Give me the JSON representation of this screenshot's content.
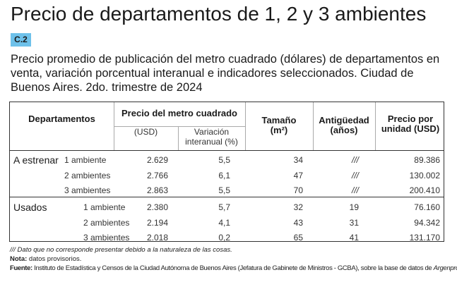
{
  "title": "Precio de departamentos de 1, 2 y 3 ambientes",
  "badge": "C.2",
  "subtitle": "Precio promedio de publicación del metro cuadrado (dólares) de departamentos en venta, variación porcentual interanual e indicadores seleccionados. Ciudad de Buenos Aires. 2do. trimestre de 2024",
  "headers": {
    "departamentos": "Departamentos",
    "precio_m2": "Precio del metro cuadrado",
    "usd": "(USD)",
    "variacion": "Variación interanual (%)",
    "tamano": "Tamaño",
    "tamano_unit": "(m²)",
    "antiguedad": "Antigüedad (años)",
    "precio_unidad": "Precio por unidad (USD)"
  },
  "groups": [
    {
      "name": "A estrenar",
      "rows": [
        {
          "label": "1 ambiente",
          "usd": "2.629",
          "var": "5,5",
          "size": "34",
          "age": "///",
          "price": "89.386"
        },
        {
          "label": "2 ambientes",
          "usd": "2.766",
          "var": "6,1",
          "size": "47",
          "age": "///",
          "price": "130.002"
        },
        {
          "label": "3 ambientes",
          "usd": "2.863",
          "var": "5,5",
          "size": "70",
          "age": "///",
          "price": "200.410"
        }
      ]
    },
    {
      "name": "Usados",
      "rows": [
        {
          "label": "1 ambiente",
          "usd": "2.380",
          "var": "5,7",
          "size": "32",
          "age": "19",
          "price": "76.160"
        },
        {
          "label": "2 ambientes",
          "usd": "2.194",
          "var": "4,1",
          "size": "43",
          "age": "31",
          "price": "94.342"
        },
        {
          "label": "3 ambientes",
          "usd": "2.018",
          "var": "0,2",
          "size": "65",
          "age": "41",
          "price": "131.170"
        }
      ]
    }
  ],
  "footnotes": {
    "symbol": "/// Dato que no corresponde presentar debido a la naturaleza de las cosas.",
    "nota_label": "Nota:",
    "nota": " datos provisorios.",
    "fuente_label": "Fuente:",
    "fuente": " Instituto de Estadística y Censos de la Ciudad Autónoma de Buenos Aires (Jefatura de Gabinete de Ministros - GCBA), sobre la base de datos de ",
    "fuente_italic": "Argenprop."
  }
}
